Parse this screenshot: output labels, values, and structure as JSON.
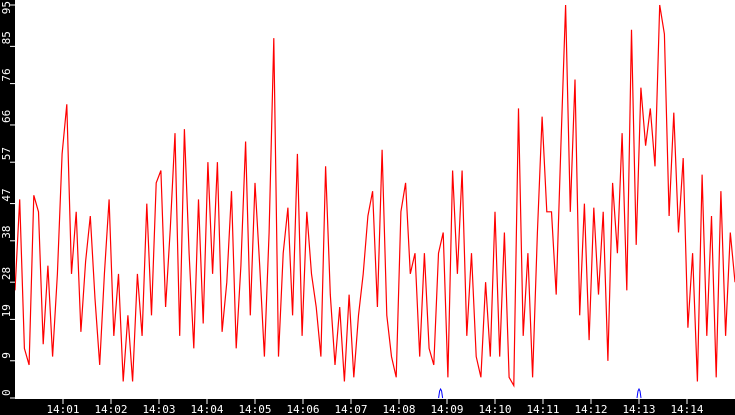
{
  "chart_data": {
    "type": "line",
    "title": "",
    "xlabel": "",
    "ylabel": "",
    "ylim": [
      0,
      95
    ],
    "xlim": [
      "14:00",
      "14:15"
    ],
    "grid": false,
    "y_ticks": [
      "0",
      "9",
      "19",
      "28",
      "38",
      "47",
      "57",
      "66",
      "76",
      "85",
      "95"
    ],
    "x_ticks": [
      "14:01",
      "14:02",
      "14:03",
      "14:04",
      "14:05",
      "14:06",
      "14:07",
      "14:08",
      "14:09",
      "14:10",
      "14:11",
      "14:12",
      "14:13",
      "14:14"
    ],
    "markers": [
      "14:08:52",
      "14:13:00"
    ],
    "colors": {
      "line": "#ff0000",
      "marker": "#0000ff",
      "axis_bg": "#000000",
      "plot_bg": "#ffffff",
      "axis_text": "#ffffff"
    },
    "values": [
      26,
      48,
      12,
      8,
      49,
      45,
      13,
      32,
      10,
      30,
      59,
      71,
      30,
      45,
      16,
      33,
      44,
      24,
      8,
      30,
      48,
      15,
      30,
      4,
      20,
      4,
      30,
      15,
      47,
      20,
      52,
      55,
      22,
      41,
      64,
      15,
      65,
      35,
      12,
      48,
      18,
      57,
      30,
      57,
      16,
      28,
      50,
      12,
      32,
      62,
      20,
      52,
      32,
      10,
      40,
      87,
      10,
      35,
      46,
      20,
      59,
      15,
      45,
      30,
      22,
      10,
      56,
      25,
      8,
      22,
      4,
      25,
      5,
      20,
      30,
      44,
      50,
      22,
      60,
      20,
      10,
      5,
      45,
      52,
      30,
      35,
      10,
      35,
      12,
      8,
      35,
      40,
      5,
      55,
      30,
      55,
      15,
      35,
      10,
      5,
      28,
      10,
      45,
      10,
      40,
      5,
      3,
      70,
      15,
      35,
      5,
      40,
      68,
      45,
      45,
      25,
      61,
      95,
      45,
      77,
      20,
      47,
      14,
      46,
      25,
      45,
      9,
      52,
      35,
      64,
      26,
      89,
      37,
      75,
      61,
      70,
      56,
      95,
      88,
      44,
      69,
      40,
      58,
      17,
      35,
      4,
      54,
      15,
      44,
      5,
      50,
      15,
      40,
      28
    ]
  }
}
